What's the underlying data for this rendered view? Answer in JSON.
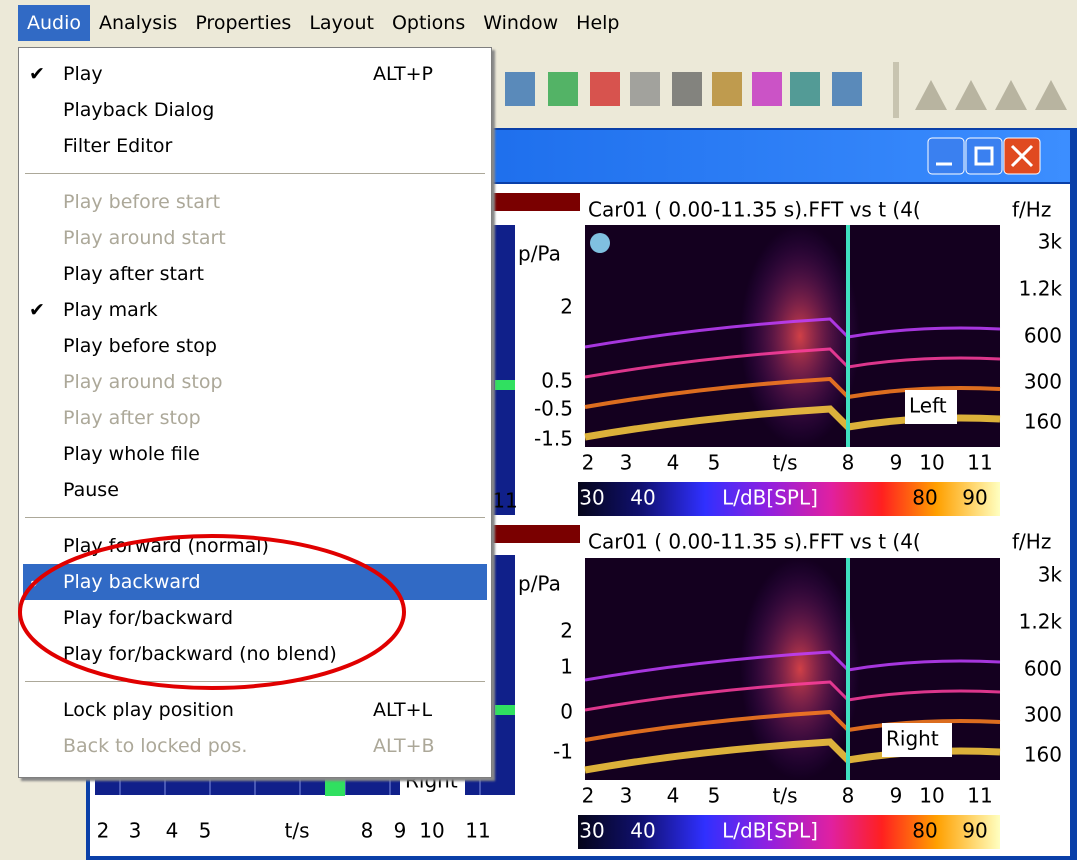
{
  "menubar": [
    "Audio",
    "Analysis",
    "Properties",
    "Layout",
    "Options",
    "Window",
    "Help"
  ],
  "menu": {
    "groups": [
      [
        {
          "label": "Play",
          "shortcut": "ALT+P",
          "checked": true
        },
        {
          "label": "Playback Dialog"
        },
        {
          "label": "Filter Editor"
        }
      ],
      [
        {
          "label": "Play before start",
          "disabled": true
        },
        {
          "label": "Play around start",
          "disabled": true
        },
        {
          "label": "Play after start"
        },
        {
          "label": "Play mark",
          "checked": true
        },
        {
          "label": "Play before stop"
        },
        {
          "label": "Play around stop",
          "disabled": true
        },
        {
          "label": "Play after stop",
          "disabled": true
        },
        {
          "label": "Play whole file"
        },
        {
          "label": "Pause"
        }
      ],
      [
        {
          "label": "Play forward (normal)"
        },
        {
          "label": "Play backward",
          "checked": true,
          "selected": true
        },
        {
          "label": "Play for/backward"
        },
        {
          "label": "Play for/backward (no blend)"
        }
      ],
      [
        {
          "label": "Lock play position",
          "shortcut": "ALT+L"
        },
        {
          "label": "Back to locked pos.",
          "shortcut": "ALT+B",
          "disabled": true
        }
      ]
    ]
  },
  "spectrograms": [
    {
      "title": "Car01 ( 0.00-11.35 s).FFT vs t (4(",
      "axis": "f/Hz",
      "yticks": [
        "3k",
        "1.2k",
        "600",
        "300",
        "160"
      ],
      "xticks": [
        "2",
        "3",
        "4",
        "5",
        "t/s",
        "8",
        "9",
        "10",
        "11"
      ],
      "channel": "Left",
      "colorbar": [
        "30",
        "40",
        "L/dB[SPL]",
        "80",
        "90"
      ]
    },
    {
      "title": "Car01 ( 0.00-11.35 s).FFT vs t (4(",
      "axis": "f/Hz",
      "yticks": [
        "3k",
        "1.2k",
        "600",
        "300",
        "160"
      ],
      "xticks": [
        "2",
        "3",
        "4",
        "5",
        "t/s",
        "8",
        "9",
        "10",
        "11"
      ],
      "channel": "Right",
      "colorbar": [
        "30",
        "40",
        "L/dB[SPL]",
        "80",
        "90"
      ]
    }
  ],
  "timeplots": [
    {
      "axis": "p/Pa",
      "yticks": [
        "2",
        "0.5",
        "-0.5",
        "-1.5"
      ],
      "xticks": [
        "11"
      ]
    },
    {
      "axis": "p/Pa",
      "yticks": [
        "2",
        "1",
        "0",
        "-1"
      ],
      "xticks": [
        "2",
        "3",
        "4",
        "5",
        "t/s",
        "8",
        "9",
        "10",
        "11"
      ],
      "channel": "Right"
    }
  ]
}
